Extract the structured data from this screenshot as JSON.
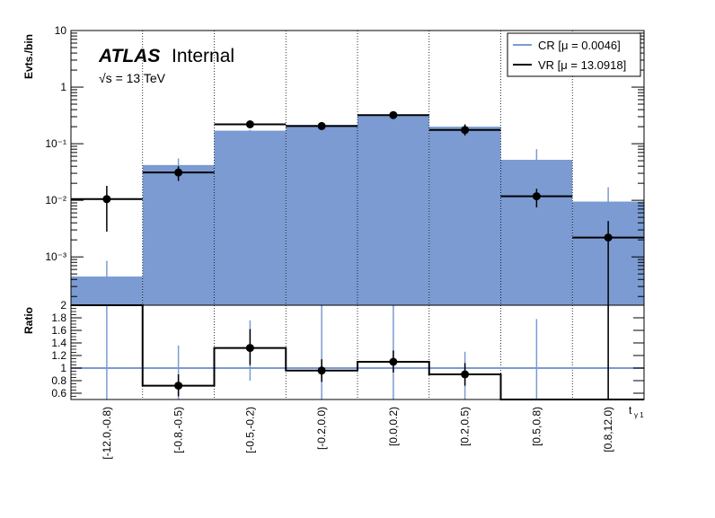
{
  "chart_data": {
    "type": "bar",
    "categories": [
      "[-12.0,-0.8)",
      "[-0.8,-0.5)",
      "[-0.5,-0.2)",
      "[-0.2,0.0)",
      "[0.0,0.2)",
      "[0.2,0.5)",
      "[0.5,0.8)",
      "[0.8,12.0)"
    ],
    "xlabel": "t",
    "xlabel_sub": "γ 1",
    "experiment": "ATLAS",
    "status": "Internal",
    "energy": "√s = 13 TeV",
    "top": {
      "ylabel": "Evts./bin",
      "yscale": "log",
      "ylim": [
        0.00014,
        10
      ],
      "yticks": [
        {
          "value": 10,
          "label": "10"
        },
        {
          "value": 1,
          "label": "1"
        },
        {
          "value": 0.1,
          "label": "10⁻¹"
        },
        {
          "value": 0.01,
          "label": "10⁻²"
        },
        {
          "value": 0.001,
          "label": "10⁻³"
        }
      ],
      "series": [
        {
          "name": "CR [μ = 0.0046]",
          "style": "filled-histogram",
          "color": "#7b9bd2",
          "values": [
            0.00045,
            0.042,
            0.17,
            0.215,
            0.31,
            0.2,
            0.052,
            0.0095
          ],
          "errors": [
            [
              0.00014,
              0.00085
            ],
            [
              0.031,
              0.055
            ],
            [
              0.165,
              0.175
            ],
            [
              0.21,
              0.22
            ],
            [
              0.305,
              0.315
            ],
            [
              0.19,
              0.21
            ],
            [
              0.03,
              0.08
            ],
            [
              0.0035,
              0.017
            ]
          ]
        },
        {
          "name": "VR [μ = 13.0918]",
          "style": "points",
          "color": "#000000",
          "values": [
            0.0105,
            0.031,
            0.22,
            0.205,
            0.32,
            0.175,
            0.0118,
            0.0022
          ],
          "errors": [
            [
              0.0028,
              0.018
            ],
            [
              0.022,
              0.04
            ],
            [
              0.19,
              0.25
            ],
            [
              0.18,
              0.23
            ],
            [
              0.29,
              0.35
            ],
            [
              0.14,
              0.22
            ],
            [
              0.0075,
              0.016
            ],
            [
              0.00014,
              0.0043
            ]
          ]
        }
      ],
      "legend": "top-right"
    },
    "bottom": {
      "ylabel": "Ratio",
      "ylim": [
        0.5,
        2.0
      ],
      "yticks": [
        {
          "value": 0.6,
          "label": "0.6"
        },
        {
          "value": 0.8,
          "label": "0.8"
        },
        {
          "value": 1.0,
          "label": "1"
        },
        {
          "value": 1.2,
          "label": "1.2"
        },
        {
          "value": 1.4,
          "label": "1.4"
        },
        {
          "value": 1.6,
          "label": "1.6"
        },
        {
          "value": 1.8,
          "label": "1.8"
        },
        {
          "value": 2.0,
          "label": "2"
        }
      ],
      "reference": 1.0,
      "ratio": [
        2.0,
        0.72,
        1.32,
        0.96,
        1.1,
        0.9,
        0.5,
        0.5
      ],
      "ratio_points": [
        {
          "bin": 1,
          "value": 0.72,
          "err": [
            0.55,
            0.9
          ]
        },
        {
          "bin": 2,
          "value": 1.32,
          "err": [
            1.05,
            1.62
          ]
        },
        {
          "bin": 3,
          "value": 0.96,
          "err": [
            0.78,
            1.14
          ]
        },
        {
          "bin": 4,
          "value": 1.1,
          "err": [
            0.93,
            1.28
          ]
        },
        {
          "bin": 5,
          "value": 0.9,
          "err": [
            0.72,
            1.08
          ]
        }
      ],
      "blue_errors": [
        [
          0.5,
          2.0
        ],
        [
          0.5,
          1.36
        ],
        [
          0.8,
          1.76
        ],
        [
          0.5,
          2.0
        ],
        [
          0.5,
          2.0
        ],
        [
          0.5,
          1.26
        ],
        [
          0.5,
          1.78
        ],
        [
          0.5,
          2.0
        ]
      ]
    }
  }
}
